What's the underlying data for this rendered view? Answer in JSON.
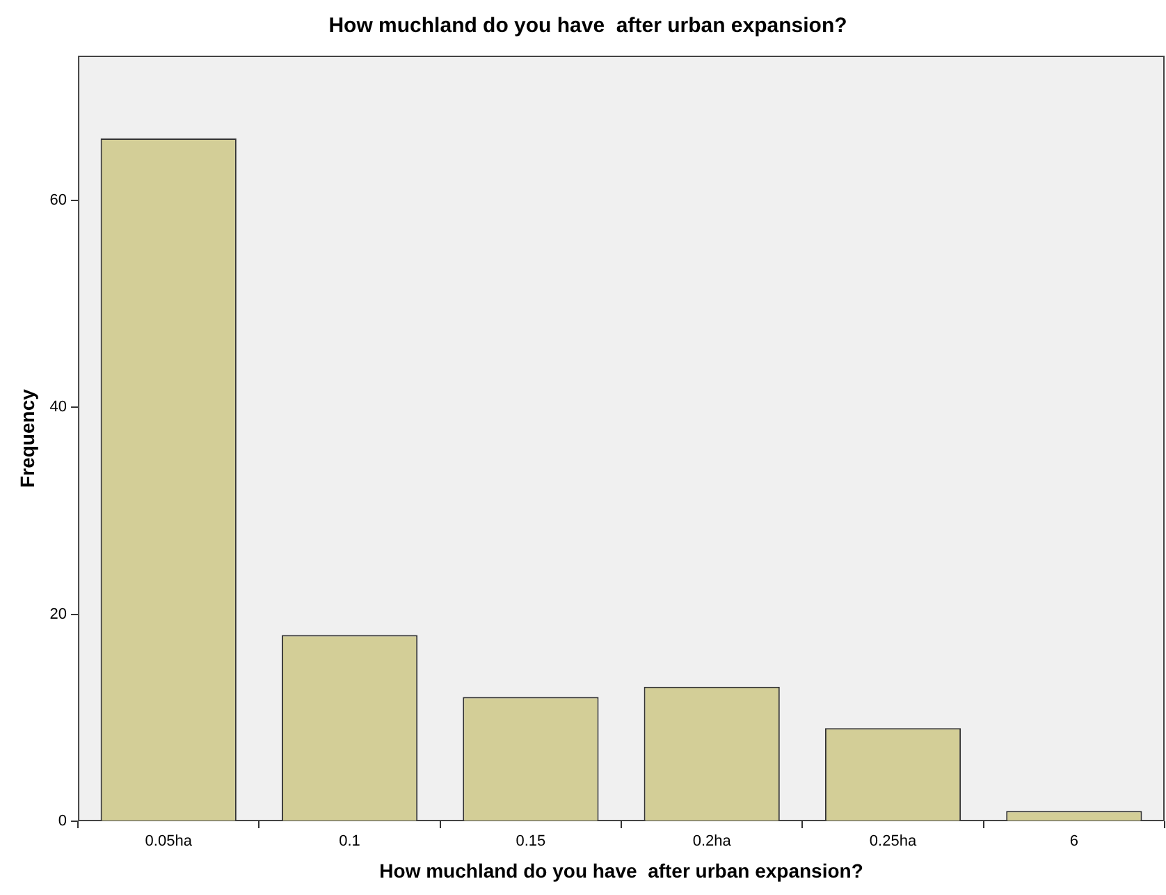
{
  "chart_data": {
    "type": "bar",
    "title": "How muchland do you have  after urban expansion?",
    "xlabel": "How muchland do you have  after urban expansion?",
    "ylabel": "Frequency",
    "categories": [
      "0.05ha",
      "0.1",
      "0.15",
      "0.2ha",
      "0.25ha",
      "6"
    ],
    "values": [
      66,
      18,
      12,
      13,
      9,
      1
    ],
    "color": "#d3ce97",
    "ylim": [
      0,
      74
    ],
    "yticks": [
      0,
      20,
      40,
      60
    ],
    "grid": false,
    "legend": false
  }
}
